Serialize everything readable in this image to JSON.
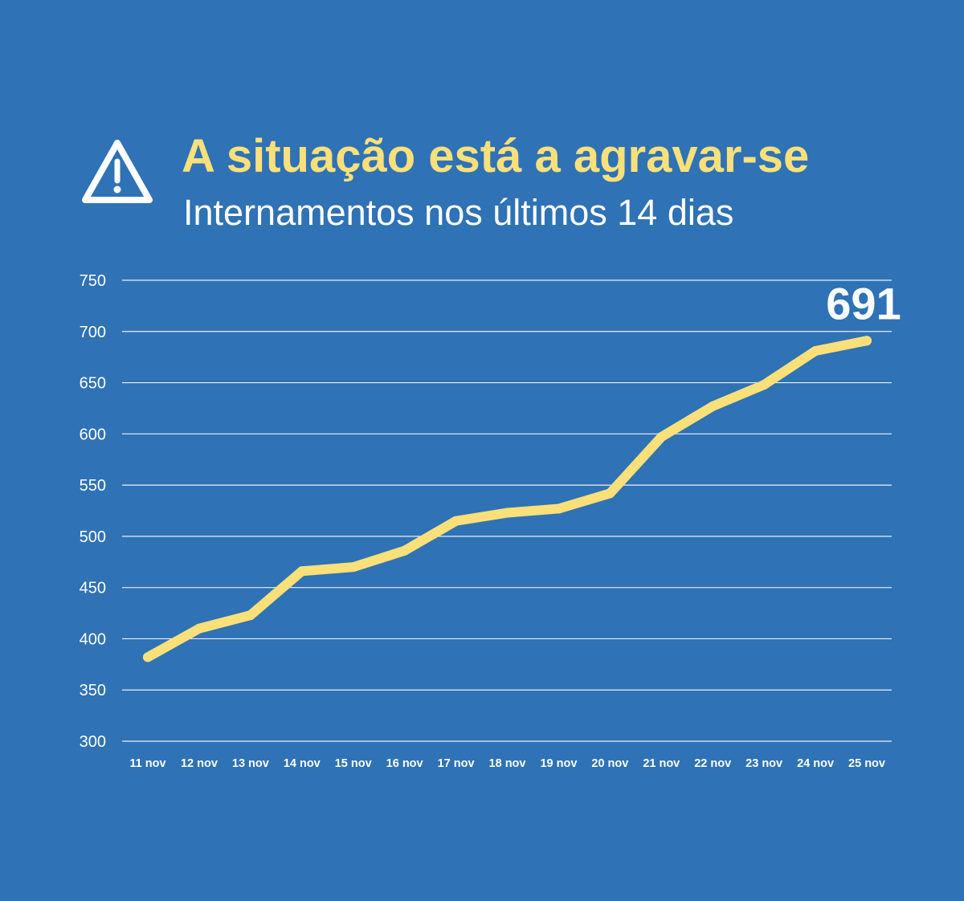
{
  "header": {
    "title": "A situação está a agravar-se",
    "subtitle": "Internamentos nos últimos 14 dias",
    "icon": "warning-icon"
  },
  "colors": {
    "background": "#2f72b5",
    "title": "#fbe07a",
    "line": "#fbe07a",
    "text": "#ffffff",
    "grid": "#ffffff"
  },
  "chart_data": {
    "type": "line",
    "categories": [
      "11 nov",
      "12 nov",
      "13 nov",
      "14 nov",
      "15 nov",
      "16 nov",
      "17 nov",
      "18 nov",
      "19 nov",
      "20 nov",
      "21 nov",
      "22 nov",
      "23 nov",
      "24 nov",
      "25 nov"
    ],
    "series": [
      {
        "values": [
          382,
          410,
          423,
          466,
          470,
          486,
          515,
          523,
          527,
          542,
          597,
          627,
          648,
          681,
          691
        ]
      }
    ],
    "annotation": {
      "text": "691",
      "category": "25 nov",
      "value": 691
    },
    "ylim": [
      300,
      750
    ],
    "yticks": [
      300,
      350,
      400,
      450,
      500,
      550,
      600,
      650,
      700,
      750
    ],
    "grid": true,
    "legend": "none"
  }
}
